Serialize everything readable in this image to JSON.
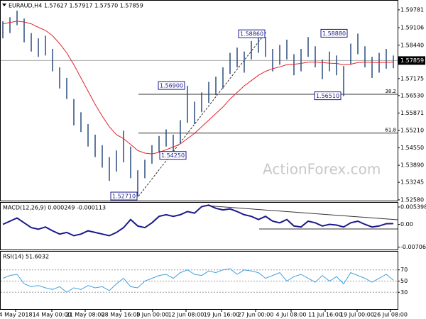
{
  "chart_data": [
    {
      "type": "ohlc",
      "title": "EURAUD,H4 1.57627 1.57917 1.57570 1.57859",
      "watermark": "ActionForex.com",
      "high": [
        1.5935,
        1.595,
        1.5975,
        1.5945,
        1.589,
        1.587,
        1.588,
        1.583,
        1.576,
        1.572,
        1.564,
        1.559,
        1.5545,
        1.5505,
        1.5465,
        1.542,
        1.5445,
        1.552,
        1.546,
        1.537,
        1.541,
        1.5465,
        1.55,
        1.5525,
        1.5505,
        1.556,
        1.569,
        1.563,
        1.5665,
        1.5705,
        1.5725,
        1.576,
        1.5815,
        1.5835,
        1.582,
        1.586,
        1.5886,
        1.5875,
        1.583,
        1.5845,
        1.5865,
        1.581,
        1.583,
        1.5875,
        1.584,
        1.579,
        1.582,
        1.5805,
        1.5765,
        1.585,
        1.5888,
        1.584,
        1.58,
        1.5815,
        1.583,
        1.5805
      ],
      "low": [
        1.587,
        1.589,
        1.592,
        1.5855,
        1.582,
        1.58,
        1.5805,
        1.5745,
        1.568,
        1.564,
        1.554,
        1.5515,
        1.546,
        1.542,
        1.538,
        1.533,
        1.5365,
        1.54,
        1.534,
        1.5271,
        1.534,
        1.5395,
        1.544,
        1.546,
        1.5425,
        1.547,
        1.555,
        1.5545,
        1.559,
        1.5625,
        1.5655,
        1.568,
        1.5735,
        1.576,
        1.574,
        1.579,
        1.5815,
        1.58,
        1.5745,
        1.577,
        1.579,
        1.573,
        1.5745,
        1.58,
        1.576,
        1.5715,
        1.5745,
        1.573,
        1.5651,
        1.577,
        1.581,
        1.576,
        1.572,
        1.574,
        1.5755,
        1.5757
      ],
      "ma": [
        1.5925,
        1.593,
        1.5935,
        1.5932,
        1.5925,
        1.5912,
        1.59,
        1.588,
        1.585,
        1.5815,
        1.577,
        1.572,
        1.567,
        1.562,
        1.5575,
        1.5535,
        1.5505,
        1.549,
        1.5468,
        1.5445,
        1.5435,
        1.5432,
        1.5438,
        1.5448,
        1.5458,
        1.547,
        1.549,
        1.551,
        1.5535,
        1.556,
        1.5585,
        1.561,
        1.564,
        1.5665,
        1.569,
        1.571,
        1.573,
        1.5745,
        1.5755,
        1.5762,
        1.577,
        1.5772,
        1.5775,
        1.578,
        1.578,
        1.5778,
        1.5776,
        1.5775,
        1.577,
        1.5772,
        1.5778,
        1.578,
        1.5779,
        1.5778,
        1.5779,
        1.578
      ],
      "bar_color": "#2b4c7e",
      "ma_color": "#e8202a",
      "ylim": [
        1.5255,
        1.601
      ],
      "yticks": [
        1.59781,
        1.59106,
        {
          "value": 1.5844,
          "label": "1.58440"
        },
        1.57175,
        {
          "value": 1.5653,
          "label": "1.56530"
        },
        1.55871,
        {
          "value": 1.5521,
          "label": "1.55210"
        },
        {
          "value": 1.5455,
          "label": "1.54550"
        },
        {
          "value": 1.5389,
          "label": "1.53890"
        },
        1.53245,
        {
          "value": 1.5258,
          "label": "1.52580"
        }
      ],
      "last_price": 1.57859,
      "annotations": [
        {
          "value": 1.5271,
          "label": "1.52710"
        },
        {
          "value": 1.5425,
          "label": "1.54250"
        },
        {
          "value": 1.569,
          "label": "1.56900"
        },
        {
          "value": 1.5886,
          "label": "1.58860"
        },
        {
          "value": 1.5651,
          "label": "1.56510"
        },
        {
          "value": 1.5888,
          "label": "1.58880"
        }
      ],
      "fib_levels": [
        {
          "ratio": 38.2,
          "price": 1.5658
        },
        {
          "ratio": 61.8,
          "price": 1.5511
        }
      ]
    },
    {
      "type": "line",
      "title": "MACD(12,26,9) 0.000249 -0.000113",
      "values": [
        0.0,
        0.001,
        0.002,
        0.0005,
        -0.001,
        -0.0015,
        -0.0008,
        -0.002,
        -0.003,
        -0.0025,
        -0.0035,
        -0.003,
        -0.002,
        -0.0025,
        -0.003,
        -0.0035,
        -0.0025,
        -0.001,
        0.0015,
        -0.0005,
        -0.001,
        0.0005,
        0.0025,
        0.003,
        0.0025,
        0.003,
        0.004,
        0.0035,
        0.0055,
        0.006,
        0.005,
        0.0045,
        0.0048,
        0.004,
        0.003,
        0.0025,
        0.0015,
        0.0025,
        0.001,
        0.0005,
        0.0015,
        -0.0005,
        -0.0008,
        0.001,
        0.0005,
        -0.0005,
        0.0,
        -0.0002,
        -0.0008,
        0.0005,
        0.001,
        0.0,
        -0.0008,
        -0.0005,
        0.0002,
        0.00025
      ],
      "color": "#1a1a8c",
      "ylim": [
        -0.0078,
        0.0065
      ],
      "yticks": [
        0.005398,
        {
          "value": 0,
          "label": "0.00"
        },
        -0.007064
      ]
    },
    {
      "type": "line",
      "title": "RSI(14) 51.6032",
      "values": [
        55,
        60,
        62,
        45,
        40,
        42,
        38,
        35,
        40,
        30,
        38,
        35,
        42,
        38,
        40,
        33,
        45,
        55,
        40,
        38,
        50,
        55,
        60,
        62,
        55,
        65,
        70,
        62,
        60,
        68,
        65,
        70,
        72,
        62,
        70,
        68,
        65,
        55,
        60,
        65,
        50,
        58,
        62,
        55,
        48,
        60,
        50,
        58,
        45,
        65,
        60,
        55,
        48,
        55,
        62,
        51.6
      ],
      "color": "#3fa0e0",
      "ylim": [
        0,
        100
      ],
      "yticks": [
        70,
        50,
        30
      ],
      "x_labels": [
        "4 May 2018",
        "14 May 00:00",
        "21 May 08:00",
        "28 May 16:00",
        "5 Jun 00:00",
        "12 Jun 08:00",
        "19 Jun 16:00",
        "27 Jun 00:00",
        "4 Jul 08:00",
        "11 Jul 16:00",
        "19 Jul 00:00",
        "26 Jul 08:00"
      ]
    }
  ]
}
